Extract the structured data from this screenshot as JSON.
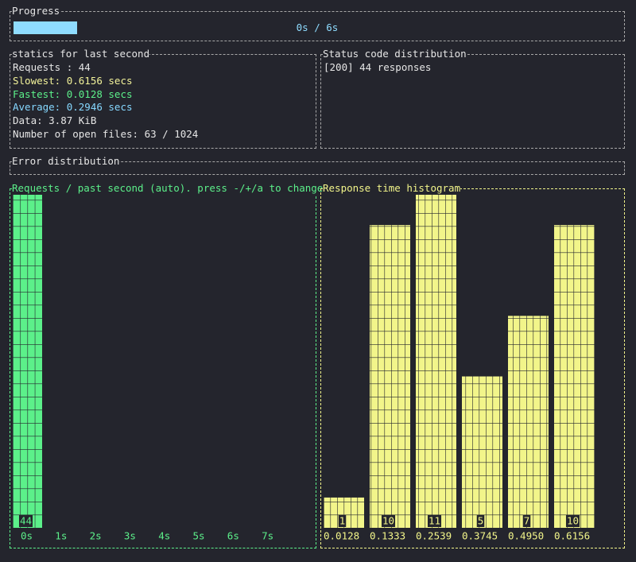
{
  "progress": {
    "title": "Progress",
    "label": "0s / 6s",
    "ratio": 0.105,
    "color": "#8fdcff"
  },
  "stats": {
    "title": "statics for last second",
    "lines": [
      {
        "text": "Requests : 44",
        "color": "#e6e6e6"
      },
      {
        "text": "Slowest: 0.6156 secs",
        "color": "#f2f29a"
      },
      {
        "text": "Fastest: 0.0128 secs",
        "color": "#5cf08a"
      },
      {
        "text": "Average: 0.2946 secs",
        "color": "#86d8ff"
      },
      {
        "text": "Data: 3.87 KiB",
        "color": "#e6e6e6"
      },
      {
        "text": "Number of open files: 63 / 1024",
        "color": "#e6e6e6"
      }
    ]
  },
  "status": {
    "title": "Status code distribution",
    "lines": [
      "[200] 44 responses"
    ]
  },
  "errors": {
    "title": "Error distribution"
  },
  "requests": {
    "type": "bar",
    "title": "Requests / past second (auto). press -/+/a to change",
    "color": "#5cf08a",
    "categories": [
      "0s",
      "1s",
      "2s",
      "3s",
      "4s",
      "5s",
      "6s",
      "7s"
    ],
    "values": [
      44,
      0,
      0,
      0,
      0,
      0,
      0,
      0
    ]
  },
  "histogram": {
    "type": "bar",
    "title": "Response time histogram",
    "color": "#f2f58a",
    "categories": [
      "0.0128",
      "0.1333",
      "0.2539",
      "0.3745",
      "0.4950",
      "0.6156"
    ],
    "values": [
      1,
      10,
      11,
      5,
      7,
      10
    ]
  }
}
